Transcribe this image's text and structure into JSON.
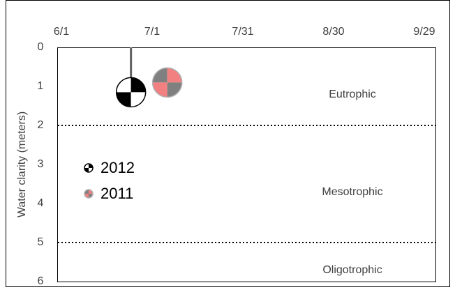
{
  "chart_data": {
    "type": "scatter",
    "y_label": "Water clarity (meters)",
    "x": [
      "6/24",
      "7/6"
    ],
    "xlim": [
      "6/1",
      "9/29"
    ],
    "xticks": [
      "6/1",
      "7/1",
      "7/31",
      "8/30",
      "9/29"
    ],
    "ylim": [
      0,
      6
    ],
    "yticks": [
      0,
      1,
      2,
      3,
      4,
      5,
      6
    ],
    "y_inverted": true,
    "series": [
      {
        "name": "2012",
        "color": "#000000",
        "color2": "#ffffff",
        "x": [
          "6/24"
        ],
        "values": [
          1.15
        ]
      },
      {
        "name": "2011",
        "color": "#f28080",
        "color2": "#808080",
        "x": [
          "7/6"
        ],
        "values": [
          0.9
        ]
      }
    ],
    "thresholds": [
      2,
      5
    ],
    "annotations": [
      "Eutrophic",
      "Mesotrophic",
      "Oligotrophic"
    ]
  }
}
